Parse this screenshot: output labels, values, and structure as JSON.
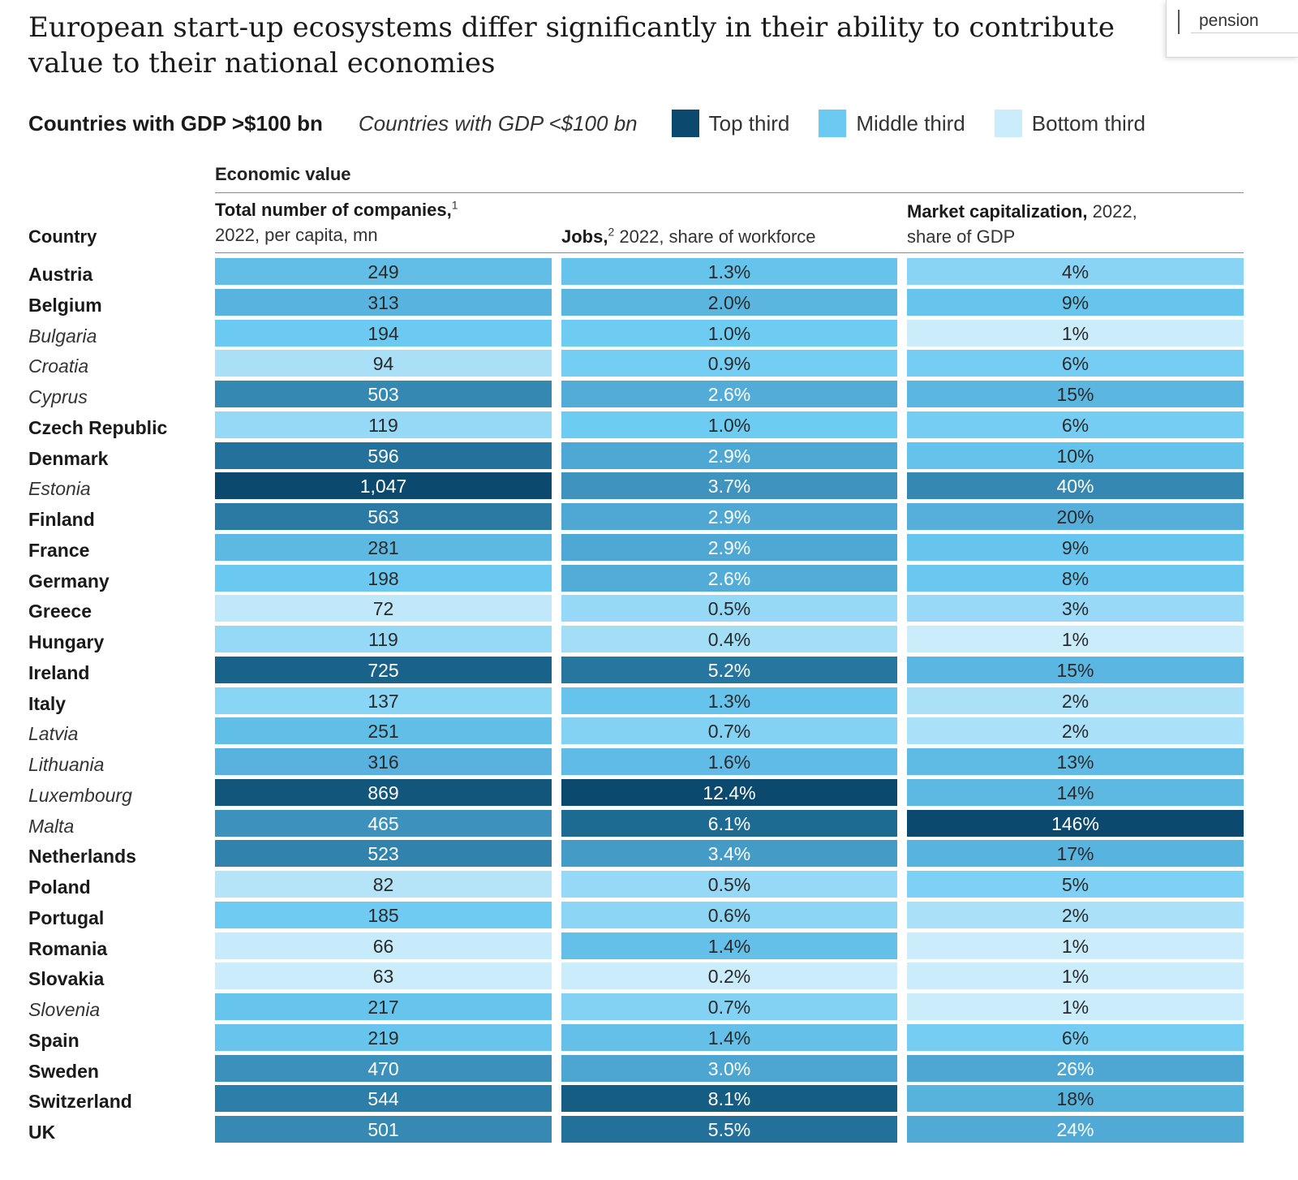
{
  "title": "European start-up ecosystems differ significantly in their ability to contribute value to their national economies",
  "search": {
    "value": "pension"
  },
  "legend": {
    "large_label": "Countries with GDP >$100 bn",
    "small_label": "Countries with GDP <$100 bn",
    "items": [
      {
        "label": "Top third",
        "color": "#0b4a6e"
      },
      {
        "label": "Middle third",
        "color": "#6ccaf2"
      },
      {
        "label": "Bottom third",
        "color": "#cbecfb"
      }
    ]
  },
  "headers": {
    "group": "Economic value",
    "country": "Country",
    "col1_bold": "Total number of companies,",
    "col1_sup": "1",
    "col1_sub": "2022, per capita, mn",
    "col2_bold": "Jobs,",
    "col2_sup": "2",
    "col2_rest": " 2022, share of workforce",
    "col3_bold": "Market capitalization,",
    "col3_rest": " 2022,",
    "col3_sub": "share of GDP"
  },
  "chart_data": {
    "type": "table",
    "title": "European start-up ecosystems differ significantly in their ability to contribute value to their national economies",
    "columns": [
      "Total number of companies, 2022, per capita, mn",
      "Jobs, 2022, share of workforce",
      "Market capitalization, 2022, share of GDP"
    ],
    "rows": [
      {
        "country": "Austria",
        "group": "large",
        "companies": "249",
        "jobs": "1.3%",
        "market_cap": "4%",
        "v": [
          249,
          1.3,
          4
        ]
      },
      {
        "country": "Belgium",
        "group": "large",
        "companies": "313",
        "jobs": "2.0%",
        "market_cap": "9%",
        "v": [
          313,
          2.0,
          9
        ]
      },
      {
        "country": "Bulgaria",
        "group": "small",
        "companies": "194",
        "jobs": "1.0%",
        "market_cap": "1%",
        "v": [
          194,
          1.0,
          1
        ]
      },
      {
        "country": "Croatia",
        "group": "small",
        "companies": "94",
        "jobs": "0.9%",
        "market_cap": "6%",
        "v": [
          94,
          0.9,
          6
        ]
      },
      {
        "country": "Cyprus",
        "group": "small",
        "companies": "503",
        "jobs": "2.6%",
        "market_cap": "15%",
        "v": [
          503,
          2.6,
          15
        ]
      },
      {
        "country": "Czech Republic",
        "group": "large",
        "companies": "119",
        "jobs": "1.0%",
        "market_cap": "6%",
        "v": [
          119,
          1.0,
          6
        ]
      },
      {
        "country": "Denmark",
        "group": "large",
        "companies": "596",
        "jobs": "2.9%",
        "market_cap": "10%",
        "v": [
          596,
          2.9,
          10
        ]
      },
      {
        "country": "Estonia",
        "group": "small",
        "companies": "1,047",
        "jobs": "3.7%",
        "market_cap": "40%",
        "v": [
          1047,
          3.7,
          40
        ]
      },
      {
        "country": "Finland",
        "group": "large",
        "companies": "563",
        "jobs": "2.9%",
        "market_cap": "20%",
        "v": [
          563,
          2.9,
          20
        ]
      },
      {
        "country": "France",
        "group": "large",
        "companies": "281",
        "jobs": "2.9%",
        "market_cap": "9%",
        "v": [
          281,
          2.9,
          9
        ]
      },
      {
        "country": "Germany",
        "group": "large",
        "companies": "198",
        "jobs": "2.6%",
        "market_cap": "8%",
        "v": [
          198,
          2.6,
          8
        ]
      },
      {
        "country": "Greece",
        "group": "large",
        "companies": "72",
        "jobs": "0.5%",
        "market_cap": "3%",
        "v": [
          72,
          0.5,
          3
        ]
      },
      {
        "country": "Hungary",
        "group": "large",
        "companies": "119",
        "jobs": "0.4%",
        "market_cap": "1%",
        "v": [
          119,
          0.4,
          1
        ]
      },
      {
        "country": "Ireland",
        "group": "large",
        "companies": "725",
        "jobs": "5.2%",
        "market_cap": "15%",
        "v": [
          725,
          5.2,
          15
        ]
      },
      {
        "country": "Italy",
        "group": "large",
        "companies": "137",
        "jobs": "1.3%",
        "market_cap": "2%",
        "v": [
          137,
          1.3,
          2
        ]
      },
      {
        "country": "Latvia",
        "group": "small",
        "companies": "251",
        "jobs": "0.7%",
        "market_cap": "2%",
        "v": [
          251,
          0.7,
          2
        ]
      },
      {
        "country": "Lithuania",
        "group": "small",
        "companies": "316",
        "jobs": "1.6%",
        "market_cap": "13%",
        "v": [
          316,
          1.6,
          13
        ]
      },
      {
        "country": "Luxembourg",
        "group": "small",
        "companies": "869",
        "jobs": "12.4%",
        "market_cap": "14%",
        "v": [
          869,
          12.4,
          14
        ]
      },
      {
        "country": "Malta",
        "group": "small",
        "companies": "465",
        "jobs": "6.1%",
        "market_cap": "146%",
        "v": [
          465,
          6.1,
          146
        ]
      },
      {
        "country": "Netherlands",
        "group": "large",
        "companies": "523",
        "jobs": "3.4%",
        "market_cap": "17%",
        "v": [
          523,
          3.4,
          17
        ]
      },
      {
        "country": "Poland",
        "group": "large",
        "companies": "82",
        "jobs": "0.5%",
        "market_cap": "5%",
        "v": [
          82,
          0.5,
          5
        ]
      },
      {
        "country": "Portugal",
        "group": "large",
        "companies": "185",
        "jobs": "0.6%",
        "market_cap": "2%",
        "v": [
          185,
          0.6,
          2
        ]
      },
      {
        "country": "Romania",
        "group": "large",
        "companies": "66",
        "jobs": "1.4%",
        "market_cap": "1%",
        "v": [
          66,
          1.4,
          1
        ]
      },
      {
        "country": "Slovakia",
        "group": "large",
        "companies": "63",
        "jobs": "0.2%",
        "market_cap": "1%",
        "v": [
          63,
          0.2,
          1
        ]
      },
      {
        "country": "Slovenia",
        "group": "small",
        "companies": "217",
        "jobs": "0.7%",
        "market_cap": "1%",
        "v": [
          217,
          0.7,
          1
        ]
      },
      {
        "country": "Spain",
        "group": "large",
        "companies": "219",
        "jobs": "1.4%",
        "market_cap": "6%",
        "v": [
          219,
          1.4,
          6
        ]
      },
      {
        "country": "Sweden",
        "group": "large",
        "companies": "470",
        "jobs": "3.0%",
        "market_cap": "26%",
        "v": [
          470,
          3.0,
          26
        ]
      },
      {
        "country": "Switzerland",
        "group": "large",
        "companies": "544",
        "jobs": "8.1%",
        "market_cap": "18%",
        "v": [
          544,
          8.1,
          18
        ]
      },
      {
        "country": "UK",
        "group": "large",
        "companies": "501",
        "jobs": "5.5%",
        "market_cap": "24%",
        "v": [
          501,
          5.5,
          24
        ]
      }
    ]
  }
}
